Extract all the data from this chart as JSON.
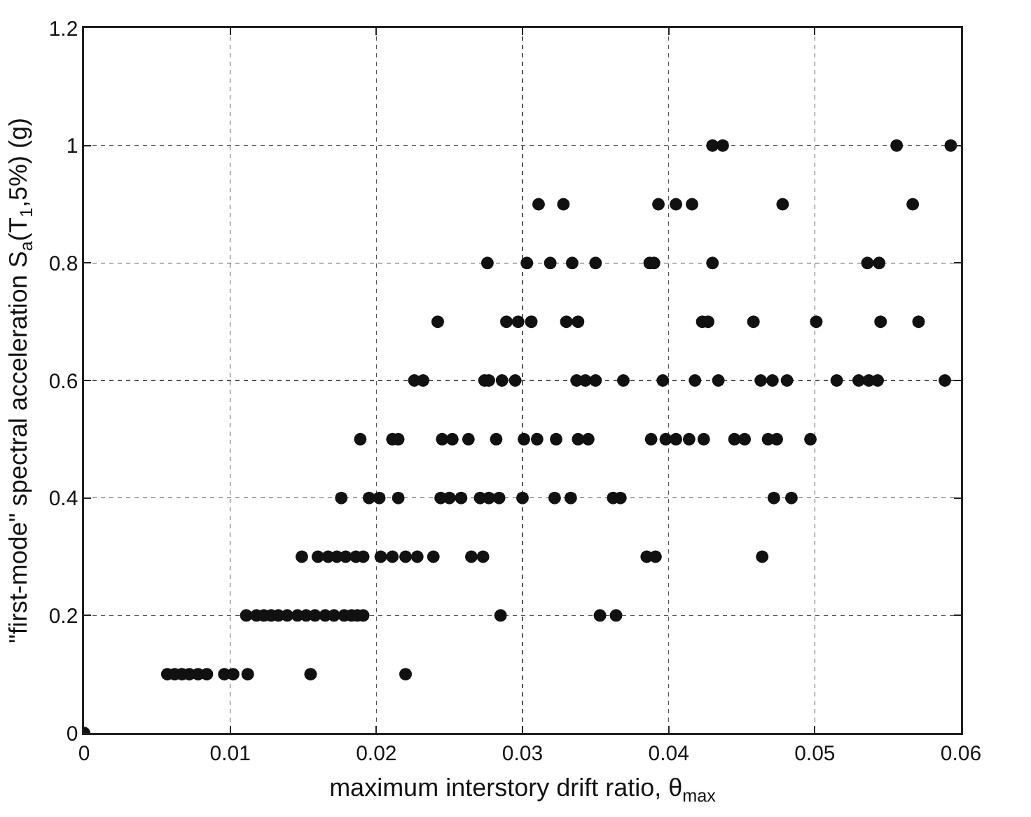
{
  "chart_data": {
    "type": "scatter",
    "xlabel": "maximum interstory drift ratio, θ$_{max}$",
    "ylabel": "\"first-mode\" spectral acceleration S$_{a}$(T$_{1}$,5%) (g)",
    "x": [
      0,
      0.0057,
      0.0062,
      0.0067,
      0.0072,
      0.0078,
      0.0084,
      0.0096,
      0.0102,
      0.0112,
      0.0155,
      0.022,
      0.0111,
      0.0118,
      0.0123,
      0.0128,
      0.0133,
      0.0139,
      0.0146,
      0.0152,
      0.0158,
      0.0165,
      0.0171,
      0.0178,
      0.0183,
      0.0187,
      0.0191,
      0.0285,
      0.0353,
      0.0364,
      0.0149,
      0.016,
      0.0167,
      0.0173,
      0.0179,
      0.0186,
      0.0191,
      0.0203,
      0.0211,
      0.022,
      0.0228,
      0.0239,
      0.0265,
      0.0273,
      0.0385,
      0.0391,
      0.0464,
      0.0176,
      0.0195,
      0.0202,
      0.0215,
      0.0244,
      0.025,
      0.0258,
      0.0271,
      0.0277,
      0.0284,
      0.03,
      0.0322,
      0.0333,
      0.0362,
      0.0367,
      0.0472,
      0.0484,
      0.0189,
      0.0211,
      0.0215,
      0.0245,
      0.0252,
      0.0263,
      0.0282,
      0.0301,
      0.031,
      0.0323,
      0.0338,
      0.0345,
      0.0388,
      0.0398,
      0.0405,
      0.0414,
      0.0424,
      0.0445,
      0.0452,
      0.0468,
      0.0474,
      0.0497,
      0.0226,
      0.0232,
      0.0274,
      0.0277,
      0.0286,
      0.0295,
      0.0337,
      0.0343,
      0.035,
      0.0369,
      0.0396,
      0.0418,
      0.0434,
      0.0463,
      0.0471,
      0.0481,
      0.0515,
      0.053,
      0.0537,
      0.0543,
      0.0589,
      0.0242,
      0.0289,
      0.0297,
      0.0306,
      0.033,
      0.0338,
      0.0423,
      0.0427,
      0.0458,
      0.0501,
      0.0545,
      0.0571,
      0.0276,
      0.0303,
      0.0319,
      0.0334,
      0.035,
      0.0387,
      0.039,
      0.043,
      0.0536,
      0.0544,
      0.0311,
      0.0328,
      0.0393,
      0.0405,
      0.0416,
      0.0478,
      0.0567,
      0.043,
      0.0437,
      0.0556,
      0.0593
    ],
    "values": [
      0,
      0.1,
      0.1,
      0.1,
      0.1,
      0.1,
      0.1,
      0.1,
      0.1,
      0.1,
      0.1,
      0.1,
      0.2,
      0.2,
      0.2,
      0.2,
      0.2,
      0.2,
      0.2,
      0.2,
      0.2,
      0.2,
      0.2,
      0.2,
      0.2,
      0.2,
      0.2,
      0.2,
      0.2,
      0.2,
      0.3,
      0.3,
      0.3,
      0.3,
      0.3,
      0.3,
      0.3,
      0.3,
      0.3,
      0.3,
      0.3,
      0.3,
      0.3,
      0.3,
      0.3,
      0.3,
      0.3,
      0.4,
      0.4,
      0.4,
      0.4,
      0.4,
      0.4,
      0.4,
      0.4,
      0.4,
      0.4,
      0.4,
      0.4,
      0.4,
      0.4,
      0.4,
      0.4,
      0.4,
      0.5,
      0.5,
      0.5,
      0.5,
      0.5,
      0.5,
      0.5,
      0.5,
      0.5,
      0.5,
      0.5,
      0.5,
      0.5,
      0.5,
      0.5,
      0.5,
      0.5,
      0.5,
      0.5,
      0.5,
      0.5,
      0.5,
      0.6,
      0.6,
      0.6,
      0.6,
      0.6,
      0.6,
      0.6,
      0.6,
      0.6,
      0.6,
      0.6,
      0.6,
      0.6,
      0.6,
      0.6,
      0.6,
      0.6,
      0.6,
      0.6,
      0.6,
      0.6,
      0.7,
      0.7,
      0.7,
      0.7,
      0.7,
      0.7,
      0.7,
      0.7,
      0.7,
      0.7,
      0.7,
      0.7,
      0.8,
      0.8,
      0.8,
      0.8,
      0.8,
      0.8,
      0.8,
      0.8,
      0.8,
      0.8,
      0.9,
      0.9,
      0.9,
      0.9,
      0.9,
      0.9,
      0.9,
      1,
      1,
      1,
      1
    ],
    "color": "#111111",
    "marker": "circle",
    "grid": true,
    "xlim": [
      0,
      0.06
    ],
    "xticks": [
      0,
      0.01,
      0.02,
      0.03,
      0.04,
      0.05,
      0.06
    ],
    "ylim": [
      0,
      1.2
    ],
    "yticks": [
      0,
      0.2,
      0.4,
      0.6,
      0.8,
      1,
      1.2
    ]
  }
}
